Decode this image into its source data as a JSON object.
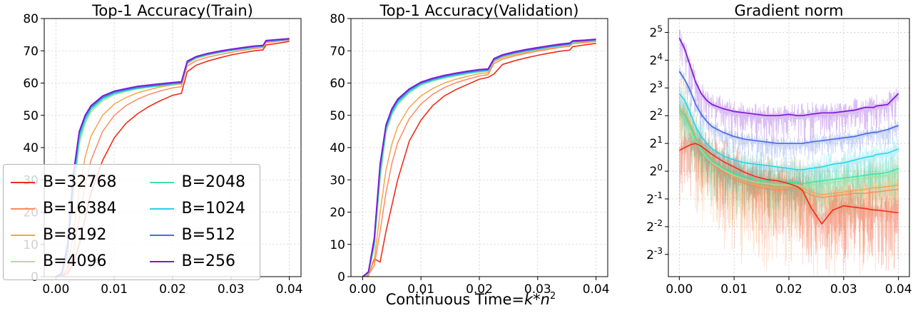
{
  "figure": {
    "background": "#ffffff",
    "xlabel": {
      "prefix": "Continuous Time=",
      "k": "k",
      "star": "*",
      "n": "n",
      "exp": "2"
    }
  },
  "legend": {
    "items": [
      {
        "label": "B=32768",
        "color": "#ee2d17"
      },
      {
        "label": "B=16384",
        "color": "#fd8a62"
      },
      {
        "label": "B=8192",
        "color": "#f2a64b"
      },
      {
        "label": "B=4096",
        "color": "#a6e39c"
      },
      {
        "label": "B=2048",
        "color": "#3be3a5"
      },
      {
        "label": "B=1024",
        "color": "#25d2e5"
      },
      {
        "label": "B=512",
        "color": "#4a6fe3"
      },
      {
        "label": "B=256",
        "color": "#7e18d8"
      }
    ]
  },
  "chart_data": [
    {
      "type": "line",
      "title": "Top-1 Accuracy(Train)",
      "yscale": "linear",
      "xlim": [
        -0.002,
        0.042
      ],
      "ylim": [
        0,
        80
      ],
      "grid": true,
      "xticks": [
        0,
        0.01,
        0.02,
        0.03,
        0.04
      ],
      "xtick_labels": [
        "0.00",
        "0.01",
        "0.02",
        "0.03",
        "0.04"
      ],
      "yticks": [
        0,
        10,
        20,
        30,
        40,
        50,
        60,
        70,
        80
      ],
      "ytick_labels": [
        "0",
        "10",
        "20",
        "30",
        "40",
        "50",
        "60",
        "70",
        "80"
      ],
      "x": [
        0,
        0.001,
        0.002,
        0.003,
        0.004,
        0.005,
        0.006,
        0.008,
        0.01,
        0.012,
        0.014,
        0.016,
        0.018,
        0.02,
        0.0215,
        0.0225,
        0.024,
        0.026,
        0.028,
        0.03,
        0.032,
        0.034,
        0.0355,
        0.036,
        0.038,
        0.04
      ],
      "series": [
        {
          "name": "B=32768",
          "color": "#ee2d17",
          "width": 1.6,
          "values": [
            0,
            0.1,
            1,
            4,
            10,
            18,
            26,
            36,
            43,
            47.5,
            50.5,
            52.8,
            54.6,
            56.2,
            56.8,
            63.5,
            65.5,
            66.8,
            67.8,
            68.7,
            69.4,
            70.0,
            70.3,
            71.8,
            72.3,
            72.9
          ]
        },
        {
          "name": "B=16384",
          "color": "#fd8a62",
          "width": 1.5,
          "values": [
            0,
            0.2,
            2,
            8,
            18,
            28,
            36,
            45,
            50,
            53,
            55,
            56.5,
            57.6,
            58.5,
            58.9,
            65.3,
            66.9,
            68.0,
            68.8,
            69.5,
            70.1,
            70.7,
            71.0,
            72.5,
            72.9,
            73.3
          ]
        },
        {
          "name": "B=8192",
          "color": "#f2a64b",
          "width": 1.5,
          "values": [
            0,
            0.3,
            3,
            13,
            27,
            37,
            43.5,
            50,
            53.5,
            55.5,
            57,
            58,
            58.8,
            59.4,
            59.7,
            66.0,
            67.6,
            68.6,
            69.4,
            70.0,
            70.6,
            71.2,
            71.5,
            73.0,
            73.4,
            73.8
          ]
        },
        {
          "name": "B=4096",
          "color": "#a6e39c",
          "width": 1.5,
          "values": [
            0,
            0.5,
            6,
            25,
            41,
            47.5,
            51,
            54.5,
            56.4,
            57.4,
            58.2,
            58.7,
            59.1,
            59.6,
            59.8,
            66.2,
            67.7,
            68.7,
            69.4,
            70.0,
            70.5,
            71.0,
            71.3,
            72.8,
            73.1,
            73.5
          ]
        },
        {
          "name": "B=2048",
          "color": "#3be3a5",
          "width": 1.5,
          "values": [
            0,
            0.6,
            7,
            27,
            42.5,
            48.3,
            51.7,
            55,
            56.7,
            57.6,
            58.3,
            58.8,
            59.2,
            59.7,
            59.9,
            66.3,
            67.8,
            68.8,
            69.5,
            70.1,
            70.6,
            71.1,
            71.4,
            72.9,
            73.2,
            73.5
          ]
        },
        {
          "name": "B=1024",
          "color": "#25d2e5",
          "width": 1.5,
          "values": [
            0,
            0.7,
            8,
            29,
            43.5,
            49,
            52.2,
            55.3,
            56.9,
            57.8,
            58.5,
            58.9,
            59.4,
            59.8,
            60.0,
            66.4,
            67.9,
            68.9,
            69.6,
            70.2,
            70.7,
            71.2,
            71.4,
            72.9,
            73.2,
            73.6
          ]
        },
        {
          "name": "B=512",
          "color": "#4a6fe3",
          "width": 1.8,
          "values": [
            0,
            0.8,
            9,
            31,
            44.5,
            49.5,
            52.6,
            55.6,
            57.2,
            58.0,
            58.7,
            59.1,
            59.5,
            59.9,
            60.1,
            66.5,
            68.0,
            69.0,
            69.7,
            70.3,
            70.8,
            71.3,
            71.5,
            73.0,
            73.3,
            73.6
          ]
        },
        {
          "name": "B=256",
          "color": "#7e18d8",
          "width": 1.8,
          "values": [
            0,
            1,
            10,
            32,
            45,
            50,
            53,
            56,
            57.5,
            58.3,
            59,
            59.4,
            59.8,
            60.2,
            60.4,
            66.8,
            68.2,
            69.2,
            69.9,
            70.5,
            71.0,
            71.5,
            71.7,
            73.2,
            73.5,
            73.8
          ]
        }
      ]
    },
    {
      "type": "line",
      "title": "Top-1 Accuracy(Validation)",
      "yscale": "linear",
      "xlim": [
        -0.002,
        0.042
      ],
      "ylim": [
        0,
        80
      ],
      "grid": true,
      "xticks": [
        0,
        0.01,
        0.02,
        0.03,
        0.04
      ],
      "xtick_labels": [
        "0.00",
        "0.01",
        "0.02",
        "0.03",
        "0.04"
      ],
      "yticks": [
        0,
        10,
        20,
        30,
        40,
        50,
        60,
        70,
        80
      ],
      "ytick_labels": [
        "0",
        "10",
        "20",
        "30",
        "40",
        "50",
        "60",
        "70",
        "80"
      ],
      "x": [
        0,
        0.001,
        0.002,
        0.003,
        0.004,
        0.005,
        0.006,
        0.008,
        0.01,
        0.012,
        0.014,
        0.016,
        0.018,
        0.02,
        0.0215,
        0.0225,
        0.024,
        0.026,
        0.028,
        0.03,
        0.032,
        0.034,
        0.0355,
        0.036,
        0.038,
        0.04
      ],
      "series": [
        {
          "name": "B=32768",
          "color": "#ee2d17",
          "width": 1.6,
          "values": [
            0,
            0.3,
            5.5,
            4.5,
            14,
            22,
            30,
            42,
            48.5,
            53,
            56,
            58,
            59.6,
            61.2,
            61.8,
            62.8,
            65.8,
            66.9,
            67.8,
            68.6,
            69.3,
            69.9,
            70.2,
            71.3,
            71.8,
            72.3
          ]
        },
        {
          "name": "B=16384",
          "color": "#fd8a62",
          "width": 1.5,
          "values": [
            0,
            0.4,
            3.5,
            14,
            26,
            35,
            41.5,
            49,
            53.5,
            56.5,
            58.6,
            60.1,
            61.2,
            62.2,
            62.6,
            66.0,
            67.4,
            68.4,
            69.2,
            69.9,
            70.5,
            71.1,
            71.4,
            72.2,
            72.5,
            72.9
          ]
        },
        {
          "name": "B=8192",
          "color": "#f2a64b",
          "width": 1.5,
          "values": [
            0,
            0.6,
            5,
            20,
            33,
            41,
            46.5,
            52.5,
            56,
            58.3,
            60,
            61.2,
            62.1,
            62.9,
            63.2,
            66.6,
            67.9,
            68.8,
            69.6,
            70.2,
            70.8,
            71.4,
            71.7,
            72.5,
            72.8,
            73.2
          ]
        },
        {
          "name": "B=4096",
          "color": "#a6e39c",
          "width": 1.5,
          "values": [
            0,
            1.0,
            9,
            30,
            44.5,
            50,
            53.3,
            57,
            59.3,
            60.6,
            61.5,
            62.2,
            62.9,
            63.4,
            63.7,
            67.0,
            68.2,
            69.1,
            69.8,
            70.4,
            71.0,
            71.5,
            71.8,
            72.6,
            72.9,
            73.3
          ]
        },
        {
          "name": "B=2048",
          "color": "#3be3a5",
          "width": 1.5,
          "values": [
            0,
            1.1,
            10,
            32,
            45.5,
            50.6,
            53.8,
            57.3,
            59.6,
            60.8,
            61.7,
            62.4,
            63.0,
            63.6,
            63.8,
            67.1,
            68.3,
            69.2,
            69.9,
            70.5,
            71.1,
            71.6,
            71.9,
            72.7,
            73.0,
            73.3
          ]
        },
        {
          "name": "B=1024",
          "color": "#25d2e5",
          "width": 1.5,
          "values": [
            0,
            1.2,
            10.5,
            33,
            46,
            51,
            54.2,
            57.6,
            59.8,
            61.0,
            61.9,
            62.6,
            63.2,
            63.7,
            63.9,
            67.2,
            68.4,
            69.3,
            70.0,
            70.6,
            71.2,
            71.7,
            72.0,
            72.8,
            73.0,
            73.4
          ]
        },
        {
          "name": "B=512",
          "color": "#4a6fe3",
          "width": 1.8,
          "values": [
            0,
            1.3,
            11,
            34,
            46.5,
            51.5,
            54.6,
            57.9,
            60.0,
            61.2,
            62.1,
            62.8,
            63.4,
            63.9,
            64.1,
            67.3,
            68.5,
            69.4,
            70.1,
            70.7,
            71.3,
            71.8,
            72.1,
            72.9,
            73.1,
            73.4
          ]
        },
        {
          "name": "B=256",
          "color": "#7e18d8",
          "width": 1.8,
          "values": [
            0,
            1.5,
            12,
            35,
            47,
            52,
            55,
            58.2,
            60.3,
            61.5,
            62.4,
            63.1,
            63.7,
            64.2,
            64.4,
            67.6,
            68.8,
            69.7,
            70.4,
            71.0,
            71.6,
            72.1,
            72.4,
            73.1,
            73.3,
            73.6
          ]
        }
      ]
    },
    {
      "type": "line",
      "title": "Gradient norm",
      "yscale": "log2",
      "xlim": [
        -0.002,
        0.042
      ],
      "ylim": [
        -3.8,
        5.5
      ],
      "grid": true,
      "xticks": [
        0,
        0.01,
        0.02,
        0.03,
        0.04
      ],
      "xtick_labels": [
        "0.00",
        "0.01",
        "0.02",
        "0.03",
        "0.04"
      ],
      "ytick_exponents": [
        5,
        4,
        3,
        2,
        1,
        0,
        -1,
        -2,
        -3
      ],
      "x": [
        0,
        0.001,
        0.002,
        0.003,
        0.004,
        0.005,
        0.006,
        0.008,
        0.01,
        0.012,
        0.014,
        0.016,
        0.018,
        0.02,
        0.0215,
        0.0225,
        0.024,
        0.026,
        0.028,
        0.03,
        0.032,
        0.034,
        0.0355,
        0.036,
        0.038,
        0.04
      ],
      "series": [
        {
          "name": "B=16384",
          "color": "#fd8a62",
          "width": 1.4,
          "noise": 2.2,
          "values": [
            2.1,
            1.95,
            1.6,
            1.15,
            0.8,
            0.5,
            0.25,
            -0.05,
            -0.3,
            -0.45,
            -0.55,
            -0.65,
            -0.7,
            -0.65,
            -0.6,
            -0.7,
            -0.85,
            -0.95,
            -0.9,
            -0.85,
            -0.8,
            -0.8,
            -0.75,
            -0.75,
            -0.7,
            -0.65
          ]
        },
        {
          "name": "B=8192",
          "color": "#f2a64b",
          "width": 1.4,
          "noise": 2.0,
          "values": [
            2.3,
            2.1,
            1.7,
            1.2,
            0.85,
            0.6,
            0.35,
            0.05,
            -0.2,
            -0.4,
            -0.5,
            -0.55,
            -0.6,
            -0.55,
            -0.5,
            -0.6,
            -0.75,
            -0.85,
            -0.8,
            -0.75,
            -0.7,
            -0.65,
            -0.6,
            -0.6,
            -0.55,
            -0.5
          ]
        },
        {
          "name": "B=4096",
          "color": "#a6e39c",
          "width": 1.4,
          "noise": 1.35,
          "values": [
            2.15,
            1.95,
            1.55,
            1.1,
            0.75,
            0.5,
            0.3,
            0.05,
            -0.15,
            -0.3,
            -0.4,
            -0.45,
            -0.5,
            -0.5,
            -0.5,
            -0.55,
            -0.5,
            -0.45,
            -0.4,
            -0.35,
            -0.3,
            -0.25,
            -0.2,
            -0.2,
            -0.15,
            -0.05
          ]
        },
        {
          "name": "B=2048",
          "color": "#3be3a5",
          "width": 1.4,
          "noise": 1.1,
          "values": [
            2.2,
            2.0,
            1.6,
            1.15,
            0.8,
            0.55,
            0.35,
            0.1,
            -0.1,
            -0.2,
            -0.3,
            -0.35,
            -0.35,
            -0.4,
            -0.4,
            -0.45,
            -0.4,
            -0.35,
            -0.3,
            -0.25,
            -0.2,
            -0.15,
            -0.1,
            -0.1,
            -0.05,
            0.1
          ]
        },
        {
          "name": "B=32768",
          "color": "#ee2d17",
          "width": 1.6,
          "noise": 1.6,
          "values": [
            0.75,
            0.85,
            0.95,
            1.0,
            0.9,
            0.75,
            0.6,
            0.35,
            0.15,
            -0.05,
            -0.2,
            -0.3,
            -0.35,
            -0.45,
            -0.55,
            -0.7,
            -1.3,
            -1.9,
            -1.4,
            -1.25,
            -1.3,
            -1.35,
            -1.4,
            -1.4,
            -1.45,
            -1.5
          ]
        },
        {
          "name": "B=1024",
          "color": "#25d2e5",
          "width": 1.5,
          "noise": 0.9,
          "values": [
            2.8,
            2.55,
            2.1,
            1.6,
            1.25,
            1.0,
            0.8,
            0.55,
            0.4,
            0.3,
            0.25,
            0.2,
            0.15,
            0.1,
            0.05,
            0.05,
            0.1,
            0.15,
            0.25,
            0.3,
            0.4,
            0.5,
            0.55,
            0.6,
            0.65,
            0.8
          ]
        },
        {
          "name": "B=512",
          "color": "#4a6fe3",
          "width": 1.7,
          "noise": 0.5,
          "values": [
            3.6,
            3.3,
            2.9,
            2.4,
            2.05,
            1.8,
            1.6,
            1.4,
            1.25,
            1.15,
            1.1,
            1.05,
            1.0,
            1.0,
            1.0,
            1.0,
            1.05,
            1.1,
            1.15,
            1.2,
            1.25,
            1.35,
            1.4,
            1.4,
            1.5,
            1.65
          ]
        },
        {
          "name": "B=256",
          "color": "#7e18d8",
          "width": 1.7,
          "noise": 0.8,
          "values": [
            4.8,
            4.4,
            3.8,
            3.2,
            2.8,
            2.55,
            2.4,
            2.25,
            2.15,
            2.1,
            2.05,
            2.0,
            2.0,
            2.05,
            2.0,
            2.0,
            2.05,
            2.1,
            2.1,
            2.15,
            2.2,
            2.3,
            2.3,
            2.35,
            2.4,
            2.8
          ]
        }
      ]
    }
  ]
}
